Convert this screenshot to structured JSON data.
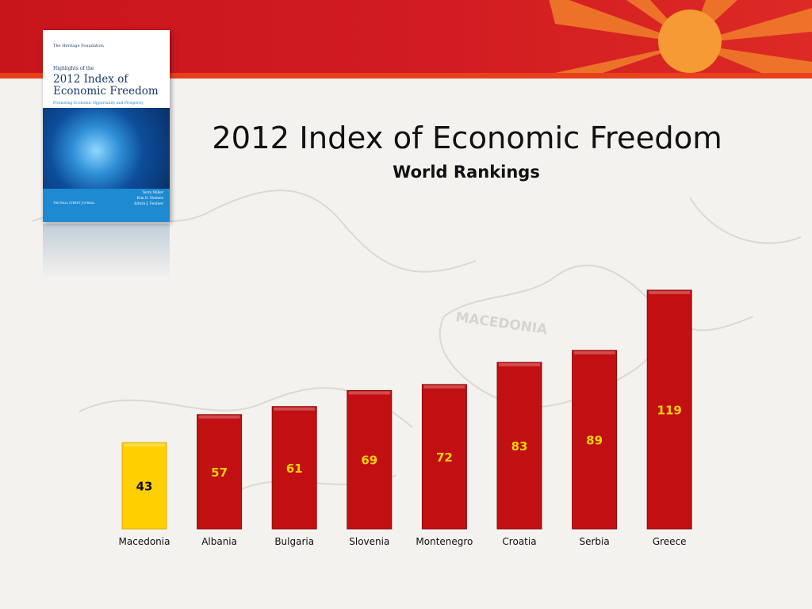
{
  "slide": {
    "title": "2012 Index of Economic Freedom",
    "subtitle": "World Rankings",
    "background_map_label": "MACEDONIA"
  },
  "book_cover": {
    "publisher_logo": "The Heritage Foundation",
    "kicker": "Highlights of the",
    "title": "2012 Index of Economic Freedom",
    "tagline": "Promoting Economic Opportunity and Prosperity",
    "authors": "Terry Miller\nKim R. Holmes\nEdwin J. Feulner",
    "co_publisher": "THE WALL STREET JOURNAL"
  },
  "colors": {
    "banner": "#d21c22",
    "bar_default": "#c20f12",
    "bar_highlight": "#ffd000",
    "label_on_red": "#ffd200",
    "label_on_yellow": "#111111"
  },
  "chart_data": {
    "type": "bar",
    "title": "2012 Index of Economic Freedom",
    "subtitle": "World Rankings",
    "categories": [
      "Macedonia",
      "Albania",
      "Bulgaria",
      "Slovenia",
      "Montenegro",
      "Croatia",
      "Serbia",
      "Greece"
    ],
    "values": [
      43,
      57,
      61,
      69,
      72,
      83,
      89,
      119
    ],
    "highlight": "Macedonia",
    "data_labels": true,
    "grid": false,
    "legend": "none",
    "xlabel": "",
    "ylabel": "",
    "ylim": [
      0,
      119
    ]
  }
}
